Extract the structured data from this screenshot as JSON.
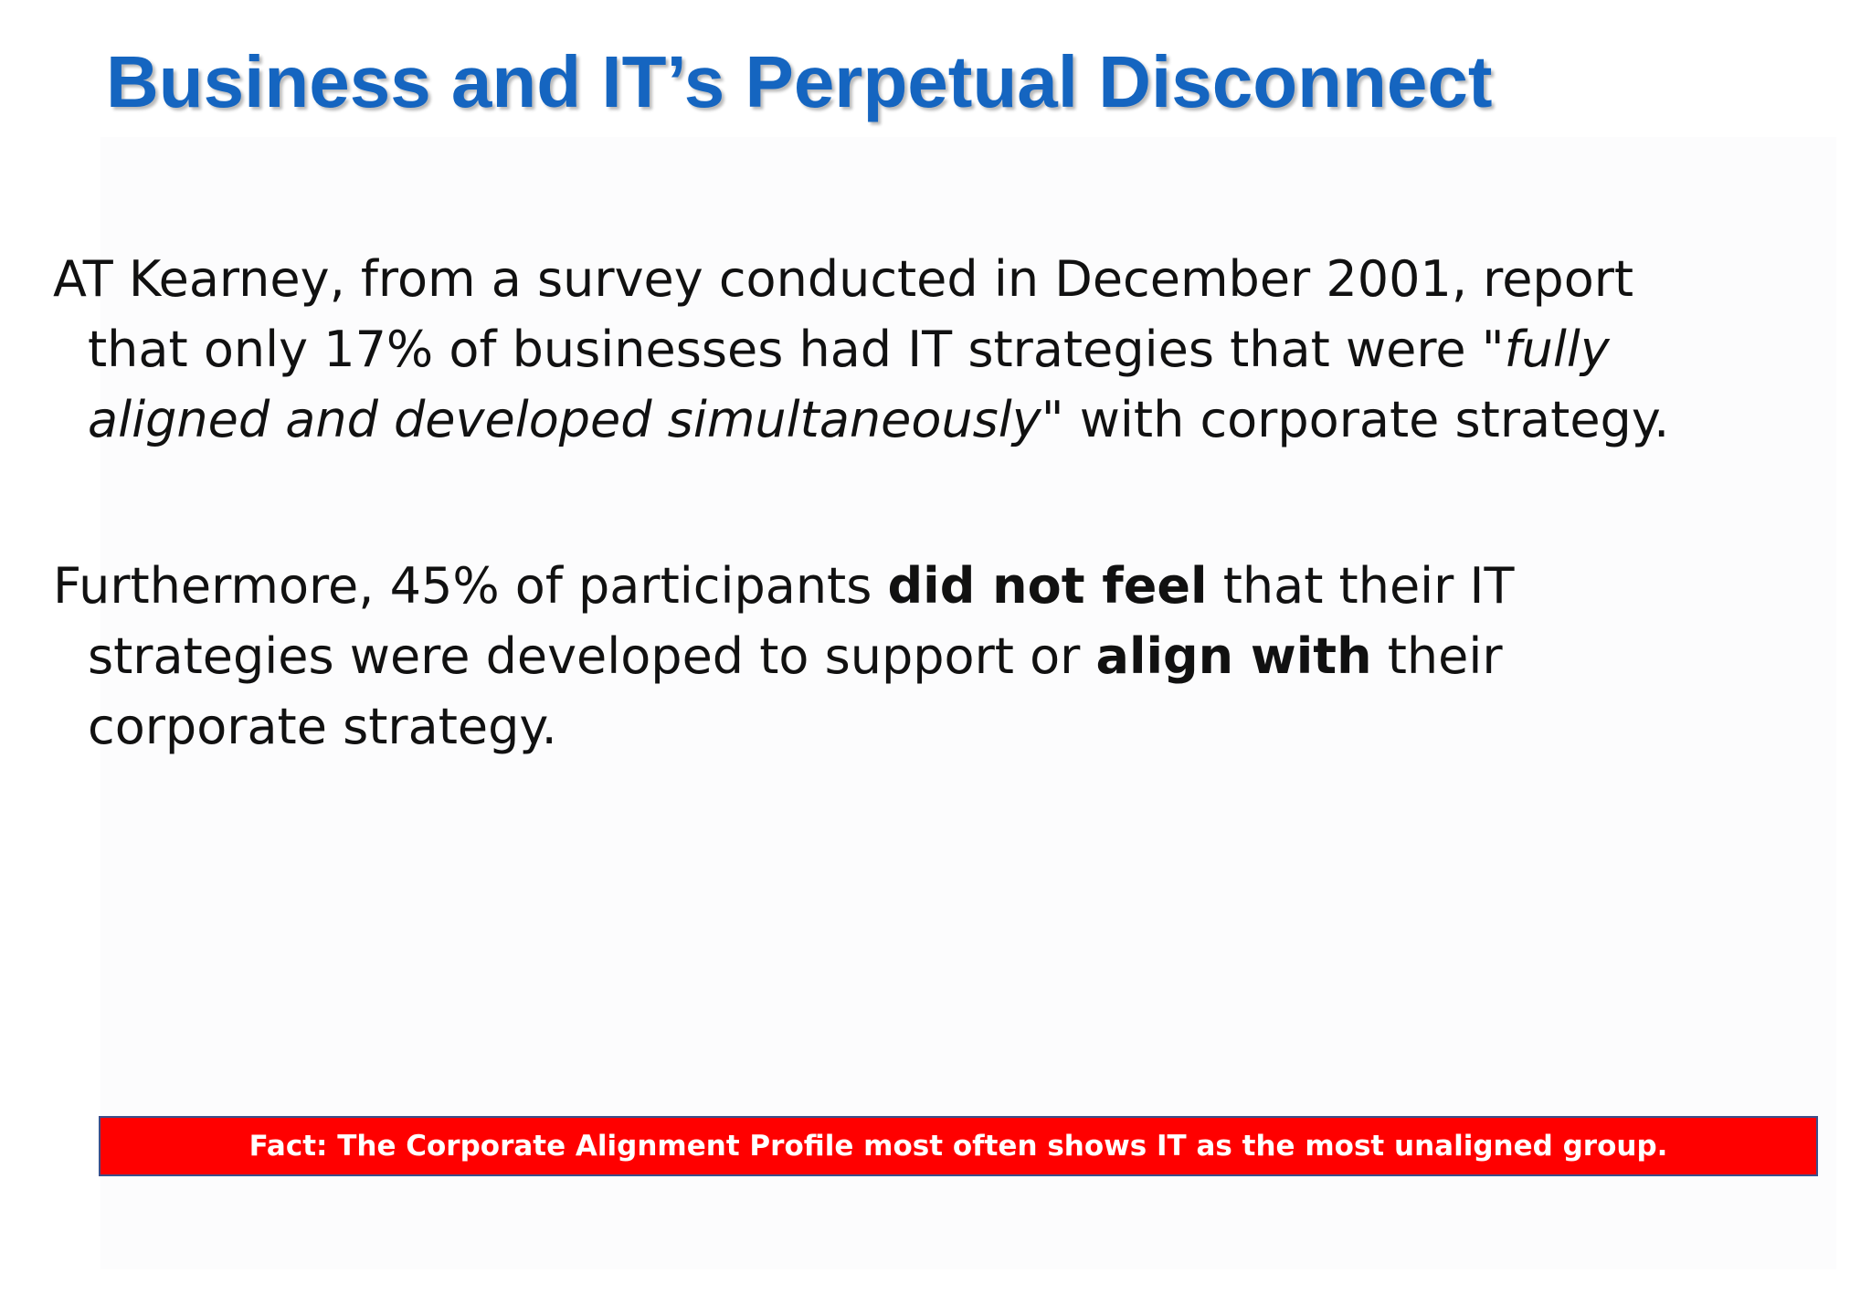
{
  "title": "Business and IT’s Perpetual Disconnect",
  "paragraph1": {
    "line1": "AT Kearney, from a survey conducted in December 2001, report",
    "line2_pre": "that only 17% of businesses had IT strategies that were \"",
    "line2_italic": "fully",
    "line3_italic": "aligned and developed simultaneously",
    "line3_post": "\" with corporate strategy."
  },
  "paragraph2": {
    "line1_pre": "Furthermore, 45% of participants ",
    "line1_bold": "did not feel",
    "line1_post": " that their IT",
    "line2_pre": "strategies were developed to support or ",
    "line2_bold": "align with",
    "line2_post": " their",
    "line3": "corporate strategy."
  },
  "fact": "Fact: The Corporate Alignment Profile most often shows IT as the most unaligned group.",
  "colors": {
    "title": "#1565c0",
    "fact_background": "#ff0000",
    "fact_text": "#ffffff"
  }
}
